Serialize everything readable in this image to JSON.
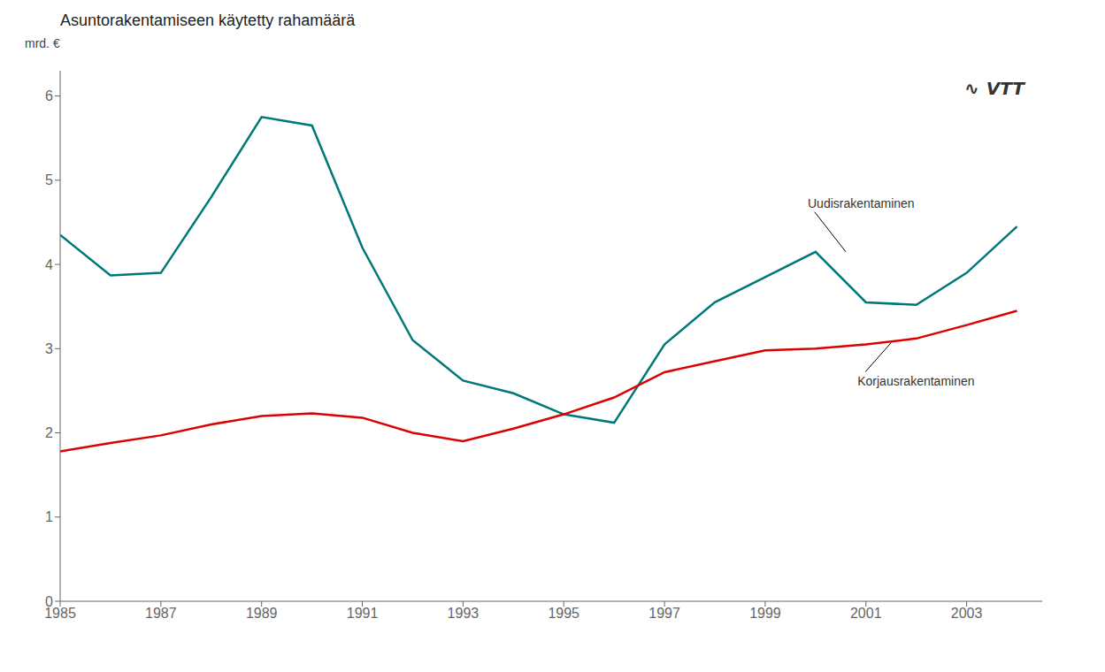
{
  "chart_data": {
    "type": "line",
    "title": "Asuntorakentamiseen käytetty rahamäärä",
    "y_label": "mrd. €",
    "x": [
      1985,
      1986,
      1987,
      1988,
      1989,
      1990,
      1991,
      1992,
      1993,
      1994,
      1995,
      1996,
      1997,
      1998,
      1999,
      2000,
      2001,
      2002,
      2003,
      2004
    ],
    "series": [
      {
        "name": "Uudisrakentaminen",
        "color": "#007878",
        "values": [
          4.35,
          3.87,
          3.9,
          4.8,
          5.75,
          5.65,
          4.2,
          3.1,
          2.62,
          2.47,
          2.22,
          2.12,
          3.05,
          3.55,
          3.85,
          4.15,
          3.55,
          3.52,
          3.9,
          4.45
        ]
      },
      {
        "name": "Korjausrakentaminen",
        "color": "#dd0000",
        "values": [
          1.78,
          1.88,
          1.97,
          2.1,
          2.2,
          2.23,
          2.18,
          2.0,
          1.9,
          2.05,
          2.22,
          2.42,
          2.72,
          2.85,
          2.98,
          3.0,
          3.05,
          3.12,
          3.28,
          3.45
        ]
      }
    ],
    "xlim": [
      1985,
      2004.5
    ],
    "ylim": [
      0,
      6.3
    ],
    "xticks": [
      1985,
      1987,
      1989,
      1991,
      1993,
      1995,
      1997,
      1999,
      2001,
      2003
    ],
    "yticks": [
      0,
      1,
      2,
      3,
      4,
      5,
      6
    ],
    "grid": false,
    "annotations": [
      {
        "text": "Uudisrakentaminen",
        "x": 2000.6,
        "y": 4.15
      },
      {
        "text": "Korjausrakentaminen",
        "x": 2001.5,
        "y": 3.07
      },
      {
        "text": "∿"
      },
      {
        "text": "VTT"
      }
    ]
  }
}
